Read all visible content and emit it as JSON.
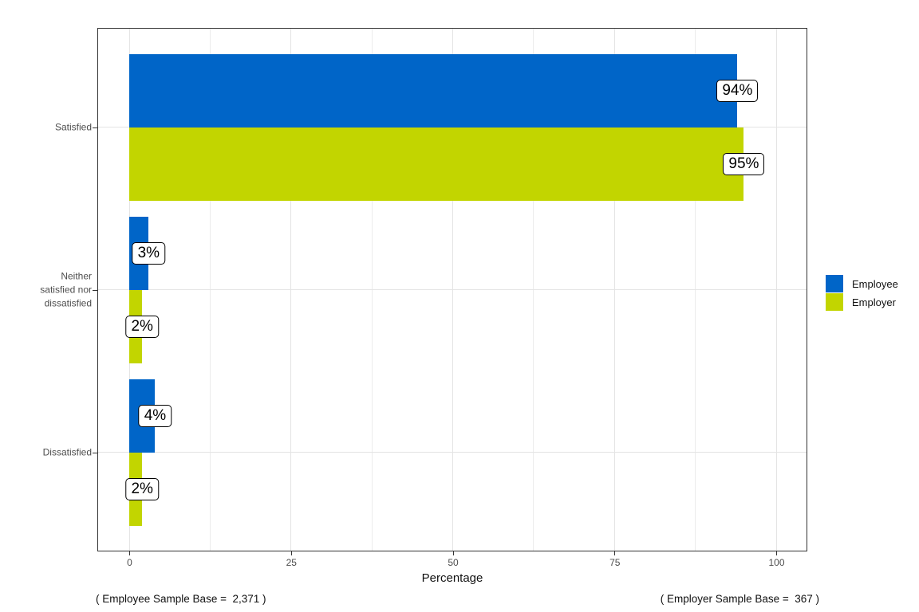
{
  "chart_data": {
    "type": "bar",
    "orientation": "horizontal",
    "xlabel": "Percentage",
    "xlim": [
      0,
      100
    ],
    "x_major_ticks": [
      0,
      25,
      50,
      75,
      100
    ],
    "x_minor_gridlines": [
      12.5,
      37.5,
      62.5,
      87.5
    ],
    "grid": true,
    "legend_position": "right",
    "categories": [
      "Satisfied",
      "Neither satisfied nor dissatisfied",
      "Dissatisfied"
    ],
    "axis_display_labels": [
      "Satisfied",
      "Neither\nsatisfied nor\ndissatisfied",
      "Dissatisfied"
    ],
    "series": [
      {
        "name": "Employee",
        "color": "#0065C8",
        "values": [
          94,
          3,
          4
        ],
        "labels": [
          "94%",
          "3%",
          "4%"
        ]
      },
      {
        "name": "Employer",
        "color": "#C2D500",
        "values": [
          95,
          2,
          2
        ],
        "labels": [
          "95%",
          "2%",
          "2%"
        ]
      }
    ]
  },
  "footnotes": {
    "left": "( Employee Sample Base =  2,371 )",
    "right": "( Employer Sample Base =  367 )"
  },
  "colors": {
    "employee": "#0065C8",
    "employer": "#C2D500",
    "gridline": "#E4E4E4",
    "axis_text": "#4D4D4D",
    "panel_border": "#333333"
  }
}
